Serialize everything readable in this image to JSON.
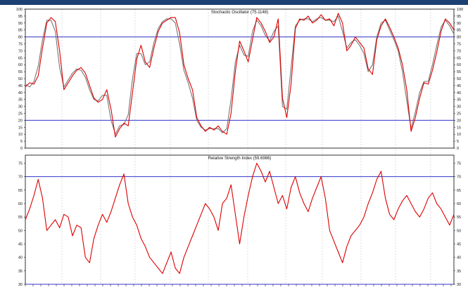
{
  "chart_data": [
    {
      "type": "line",
      "title": "Stochastic Oscillator (75.1148)",
      "ylim": [
        0,
        100
      ],
      "yticks": [
        0,
        5,
        10,
        15,
        20,
        25,
        30,
        35,
        40,
        45,
        50,
        55,
        60,
        65,
        70,
        75,
        80,
        85,
        90,
        95,
        100
      ],
      "reference_lines": [
        20,
        80
      ],
      "x": [
        0,
        2,
        4,
        6,
        8,
        10,
        12,
        14,
        16,
        18,
        20,
        22,
        24,
        26,
        28,
        30,
        32,
        34,
        36,
        38,
        40,
        42,
        44,
        46,
        48,
        50,
        52,
        54,
        56,
        58,
        60,
        62,
        64,
        66,
        68,
        70,
        72,
        74,
        76,
        78,
        80,
        82,
        84,
        86,
        88,
        90,
        92,
        94,
        96,
        98,
        100,
        102,
        104,
        106,
        108,
        110,
        112,
        114,
        116,
        118,
        120,
        122,
        124,
        126,
        128,
        130,
        132,
        134,
        136,
        138,
        140,
        142,
        144,
        146,
        148,
        150,
        152,
        154,
        156,
        158,
        160,
        162,
        164,
        166,
        168,
        170,
        172,
        174,
        176,
        178,
        180,
        182,
        184,
        186,
        188,
        190,
        192,
        194,
        196,
        198,
        200
      ],
      "series": [
        {
          "values": [
            44,
            47,
            46,
            52,
            72,
            90,
            94,
            91,
            70,
            42,
            47,
            52,
            56,
            58,
            54,
            45,
            36,
            33,
            35,
            42,
            28,
            8,
            14,
            18,
            16,
            40,
            64,
            74,
            62,
            58,
            72,
            84,
            90,
            92,
            94,
            94,
            83,
            60,
            50,
            42,
            22,
            16,
            12,
            15,
            13,
            16,
            12,
            10,
            25,
            55,
            77,
            70,
            62,
            78,
            94,
            90,
            84,
            76,
            80,
            93,
            36,
            22,
            46,
            86,
            93,
            92,
            95,
            90,
            92,
            96,
            92,
            93,
            88,
            97,
            90,
            70,
            74,
            80,
            76,
            72,
            57,
            53,
            78,
            88,
            93,
            87,
            80,
            72,
            60,
            42,
            12,
            22,
            36,
            47,
            46,
            56,
            69,
            84,
            93,
            90,
            85
          ],
          "color": "#dd0000"
        },
        {
          "values": [
            46,
            44,
            48,
            59,
            78,
            92,
            92,
            84,
            58,
            44,
            49,
            54,
            57,
            56,
            51,
            42,
            35,
            34,
            38,
            38,
            20,
            10,
            16,
            17,
            24,
            50,
            68,
            68,
            60,
            62,
            76,
            86,
            91,
            93,
            93,
            90,
            75,
            56,
            47,
            36,
            20,
            15,
            13,
            14,
            14,
            14,
            11,
            14,
            35,
            62,
            74,
            67,
            66,
            84,
            92,
            88,
            81,
            77,
            84,
            88,
            30,
            28,
            58,
            88,
            92,
            93,
            93,
            91,
            93,
            94,
            92,
            92,
            91,
            95,
            84,
            72,
            76,
            78,
            74,
            68,
            55,
            60,
            80,
            90,
            92,
            85,
            78,
            70,
            55,
            34,
            14,
            26,
            40,
            48,
            48,
            60,
            74,
            87,
            92,
            88,
            82
          ],
          "color": "#777777"
        }
      ]
    },
    {
      "type": "line",
      "title": "Relative Strength Index (59.6986)",
      "ylim": [
        30,
        78
      ],
      "yticks": [
        30,
        35,
        40,
        45,
        50,
        55,
        60,
        65,
        70,
        75
      ],
      "reference_lines": [
        30,
        70
      ],
      "x": [
        0,
        2,
        4,
        6,
        8,
        10,
        12,
        14,
        16,
        18,
        20,
        22,
        24,
        26,
        28,
        30,
        32,
        34,
        36,
        38,
        40,
        42,
        44,
        46,
        48,
        50,
        52,
        54,
        56,
        58,
        60,
        62,
        64,
        66,
        68,
        70,
        72,
        74,
        76,
        78,
        80,
        82,
        84,
        86,
        88,
        90,
        92,
        94,
        96,
        98,
        100,
        102,
        104,
        106,
        108,
        110,
        112,
        114,
        116,
        118,
        120,
        122,
        124,
        126,
        128,
        130,
        132,
        134,
        136,
        138,
        140,
        142,
        144,
        146,
        148,
        150,
        152,
        154,
        156,
        158,
        160,
        162,
        164,
        166,
        168,
        170,
        172,
        174,
        176,
        178,
        180,
        182,
        184,
        186,
        188,
        190,
        192,
        194,
        196,
        198,
        200
      ],
      "series": [
        {
          "values": [
            54,
            58,
            63,
            69,
            62,
            50,
            52,
            54,
            51,
            56,
            55,
            48,
            52,
            51,
            40,
            38,
            47,
            52,
            56,
            53,
            57,
            62,
            67,
            71,
            60,
            55,
            52,
            47,
            44,
            40,
            38,
            36,
            34,
            38,
            42,
            36,
            34,
            40,
            44,
            48,
            52,
            56,
            60,
            58,
            55,
            50,
            60,
            62,
            67,
            56,
            45,
            55,
            63,
            70,
            75,
            72,
            68,
            72,
            66,
            60,
            63,
            58,
            66,
            70,
            64,
            60,
            57,
            62,
            66,
            70,
            62,
            50,
            46,
            42,
            38,
            44,
            48,
            50,
            52,
            55,
            60,
            64,
            69,
            72,
            62,
            56,
            54,
            58,
            61,
            63,
            60,
            57,
            55,
            58,
            62,
            64,
            60,
            58,
            55,
            52,
            56
          ],
          "color": "#dd0000"
        }
      ]
    }
  ]
}
